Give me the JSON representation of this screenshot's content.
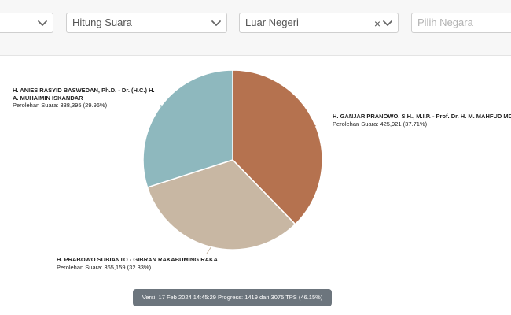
{
  "filters": {
    "first": {
      "value": ""
    },
    "mode": {
      "value": "Hitung Suara"
    },
    "region": {
      "value": "Luar Negeri",
      "clear_symbol": "×"
    },
    "country": {
      "placeholder": "Pilih Negara"
    }
  },
  "chart_data": {
    "type": "pie",
    "title": "",
    "series": [
      {
        "name_line1": "H. ANIES RASYID BASWEDAN, Ph.D. - Dr. (H.C.) H.",
        "name_line2": "A. MUHAIMIN ISKANDAR",
        "votes_text": "Perolehan Suara: 338,395 (29.96%)",
        "value": 338395,
        "percent": 29.96,
        "color": "#8eb8be"
      },
      {
        "name_line1": "H. PRABOWO SUBIANTO - GIBRAN RAKABUMING RAKA",
        "votes_text": "Perolehan Suara: 365,159 (32.33%)",
        "value": 365159,
        "percent": 32.33,
        "color": "#c8b7a3"
      },
      {
        "name_line1": "H. GANJAR PRANOWO, S.H., M.I.P. - Prof. Dr. H. M. MAHFUD MD",
        "votes_text": "Perolehan Suara: 425,921 (37.71%)",
        "value": 425921,
        "percent": 37.71,
        "color": "#b5724f"
      }
    ]
  },
  "version_text": "Versi: 17 Feb 2024 14:45:29 Progress: 1419 dari 3075 TPS (46.15%)"
}
